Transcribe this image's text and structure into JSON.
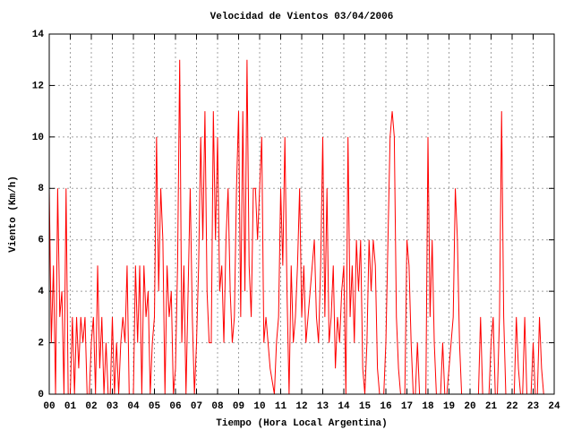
{
  "chart_data": {
    "type": "line",
    "title": "Velocidad de Vientos 03/04/2006",
    "x_label": "Tiempo (Hora Local Argentina)",
    "y_label": "Viento (Km/h)",
    "xlim": [
      0,
      24
    ],
    "ylim": [
      0,
      14
    ],
    "xticks": [
      {
        "value": 0,
        "label": "00"
      },
      {
        "value": 1,
        "label": "01"
      },
      {
        "value": 2,
        "label": "02"
      },
      {
        "value": 3,
        "label": "03"
      },
      {
        "value": 4,
        "label": "04"
      },
      {
        "value": 5,
        "label": "05"
      },
      {
        "value": 6,
        "label": "06"
      },
      {
        "value": 7,
        "label": "07"
      },
      {
        "value": 8,
        "label": "08"
      },
      {
        "value": 9,
        "label": "09"
      },
      10,
      11,
      12,
      13,
      14,
      15,
      16,
      17,
      18,
      19,
      20,
      21,
      22,
      23,
      24
    ],
    "yticks": [
      0,
      2,
      4,
      6,
      8,
      10,
      12,
      14
    ],
    "grid": true,
    "x": [
      0,
      0.1,
      0.2,
      0.3,
      0.4,
      0.5,
      0.6,
      0.7,
      0.8,
      0.9,
      1,
      1.1,
      1.2,
      1.3,
      1.4,
      1.5,
      1.6,
      1.7,
      1.8,
      1.9,
      2,
      2.1,
      2.2,
      2.3,
      2.4,
      2.5,
      2.6,
      2.7,
      2.8,
      2.9,
      3,
      3.1,
      3.2,
      3.3,
      3.4,
      3.5,
      3.6,
      3.7,
      3.8,
      3.9,
      4,
      4.1,
      4.2,
      4.3,
      4.4,
      4.5,
      4.6,
      4.7,
      4.8,
      4.9,
      5,
      5.1,
      5.2,
      5.3,
      5.4,
      5.5,
      5.6,
      5.7,
      5.8,
      5.9,
      6,
      6.1,
      6.2,
      6.3,
      6.4,
      6.5,
      6.6,
      6.7,
      6.8,
      6.9,
      7,
      7.1,
      7.2,
      7.3,
      7.4,
      7.5,
      7.6,
      7.7,
      7.8,
      7.9,
      8,
      8.1,
      8.2,
      8.3,
      8.4,
      8.5,
      8.6,
      8.7,
      8.8,
      8.9,
      9,
      9.1,
      9.2,
      9.3,
      9.4,
      9.5,
      9.6,
      9.7,
      9.8,
      9.9,
      10,
      10.1,
      10.2,
      10.3,
      10.4,
      10.5,
      10.6,
      10.7,
      10.8,
      10.9,
      11,
      11.1,
      11.2,
      11.3,
      11.4,
      11.5,
      11.6,
      11.7,
      11.8,
      11.9,
      12,
      12.1,
      12.2,
      12.3,
      12.4,
      12.5,
      12.6,
      12.7,
      12.8,
      12.9,
      13,
      13.1,
      13.2,
      13.3,
      13.4,
      13.5,
      13.6,
      13.7,
      13.8,
      13.9,
      14,
      14.1,
      14.2,
      14.3,
      14.4,
      14.5,
      14.6,
      14.7,
      14.8,
      14.9,
      15,
      15.1,
      15.2,
      15.3,
      15.4,
      15.5,
      15.6,
      15.7,
      15.8,
      15.9,
      16,
      16.1,
      16.2,
      16.3,
      16.4,
      16.5,
      16.6,
      16.7,
      16.8,
      16.9,
      17,
      17.1,
      17.2,
      17.3,
      17.4,
      17.5,
      17.6,
      17.7,
      17.8,
      17.9,
      18,
      18.1,
      18.2,
      18.3,
      18.4,
      18.5,
      18.6,
      18.7,
      18.8,
      18.9,
      19,
      19.1,
      19.2,
      19.3,
      19.4,
      19.5,
      19.6,
      19.7,
      19.8,
      19.9,
      20,
      20.1,
      20.2,
      20.3,
      20.4,
      20.5,
      20.6,
      20.7,
      20.8,
      20.9,
      21,
      21.1,
      21.2,
      21.3,
      21.4,
      21.5,
      21.6,
      21.7,
      21.8,
      21.9,
      22,
      22.1,
      22.2,
      22.3,
      22.4,
      22.5,
      22.6,
      22.7,
      22.8,
      22.9,
      23,
      23.1,
      23.2,
      23.3,
      23.4,
      23.5,
      23.6,
      23.7,
      23.8,
      23.9,
      24
    ],
    "series": [
      {
        "color": "#ff0000",
        "values": [
          8,
          2,
          5,
          0,
          8,
          3,
          4,
          0,
          8,
          0,
          0,
          3,
          0,
          3,
          1,
          3,
          2,
          3,
          0,
          0,
          2,
          3,
          0,
          5,
          1,
          3,
          0,
          2,
          0,
          0,
          3,
          0,
          2,
          0,
          2,
          3,
          2,
          5,
          0,
          0,
          0,
          5,
          2,
          5,
          0,
          5,
          3,
          4,
          0,
          2,
          3,
          10,
          4,
          8,
          6,
          0,
          5,
          3,
          4,
          0,
          1,
          5,
          13,
          2,
          5,
          0,
          4,
          8,
          3,
          0,
          2,
          5,
          10,
          6,
          11,
          4,
          2,
          2,
          11,
          6,
          10,
          4,
          5,
          2,
          6,
          8,
          4,
          2,
          3,
          8,
          11,
          3,
          11,
          4,
          13,
          5,
          3,
          8,
          8,
          6,
          8,
          10,
          2,
          3,
          2,
          1,
          0.5,
          0,
          2,
          3,
          8,
          5,
          10,
          4,
          0,
          5,
          2,
          3,
          5,
          8,
          3,
          5,
          2,
          3,
          4,
          5,
          6,
          3,
          2,
          5,
          10,
          3,
          8,
          2,
          3,
          5,
          1,
          3,
          2,
          4,
          5,
          0,
          10,
          3,
          5,
          2,
          6,
          4,
          6,
          1,
          0,
          2,
          6,
          4,
          6,
          5,
          1,
          0,
          0,
          0,
          2,
          6,
          10,
          11,
          10,
          3,
          1,
          0,
          0,
          0,
          6,
          5,
          2,
          0,
          0,
          2,
          0,
          0,
          0,
          0,
          10,
          3,
          6,
          2,
          0,
          0,
          0,
          2,
          0,
          0,
          1,
          2,
          3,
          8,
          6,
          2,
          0,
          0,
          0,
          0,
          0,
          0,
          0,
          0,
          0,
          3,
          0,
          0,
          0,
          0,
          2,
          3,
          0,
          0,
          3,
          11,
          3,
          0,
          0,
          0,
          0,
          0,
          3,
          1,
          0,
          0,
          3,
          0,
          0,
          0,
          2,
          0,
          0,
          3,
          1,
          0,
          0,
          0,
          0,
          0,
          0
        ]
      }
    ]
  }
}
